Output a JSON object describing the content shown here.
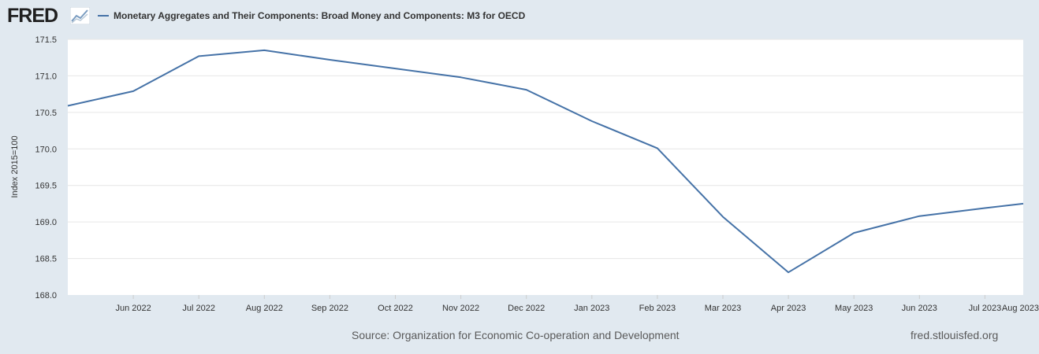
{
  "header": {
    "logo_text": "FRED",
    "logo_icon": "trend-line-icon",
    "legend_label": "Monetary Aggregates and Their Components: Broad Money and Components: M3 for OECD"
  },
  "footer": {
    "source": "Source: Organization for Economic Co-operation and Development",
    "site": "fred.stlouisfed.org"
  },
  "colors": {
    "background": "#e1e9f0",
    "plot_bg": "#ffffff",
    "series": "#4572a7",
    "grid": "#e6e6e6"
  },
  "chart_data": {
    "type": "line",
    "title": "",
    "ylabel": "Index 2015=100",
    "xlabel": "",
    "ylim": [
      168.0,
      171.5
    ],
    "y_ticks": [
      "168.0",
      "168.5",
      "169.0",
      "169.5",
      "170.0",
      "170.5",
      "171.0",
      "171.5"
    ],
    "x_ticks": [
      "Jun 2022",
      "Jul 2022",
      "Aug 2022",
      "Sep 2022",
      "Oct 2022",
      "Nov 2022",
      "Dec 2022",
      "Jan 2023",
      "Feb 2023",
      "Mar 2023",
      "Apr 2023",
      "May 2023",
      "Jun 2023",
      "Jul 2023",
      "Aug 2023"
    ],
    "grid": true,
    "series": [
      {
        "name": "Monetary Aggregates and Their Components: Broad Money and Components: M3 for OECD",
        "x": [
          "2022-05",
          "2022-06",
          "2022-07",
          "2022-08",
          "2022-09",
          "2022-10",
          "2022-11",
          "2022-12",
          "2023-01",
          "2023-02",
          "2023-03",
          "2023-04",
          "2023-05",
          "2023-06",
          "2023-07",
          "2023-08"
        ],
        "values": [
          170.59,
          170.79,
          171.27,
          171.35,
          171.22,
          171.1,
          170.98,
          170.81,
          170.38,
          170.01,
          169.07,
          168.31,
          168.85,
          169.08,
          169.19,
          169.25
        ]
      }
    ]
  }
}
